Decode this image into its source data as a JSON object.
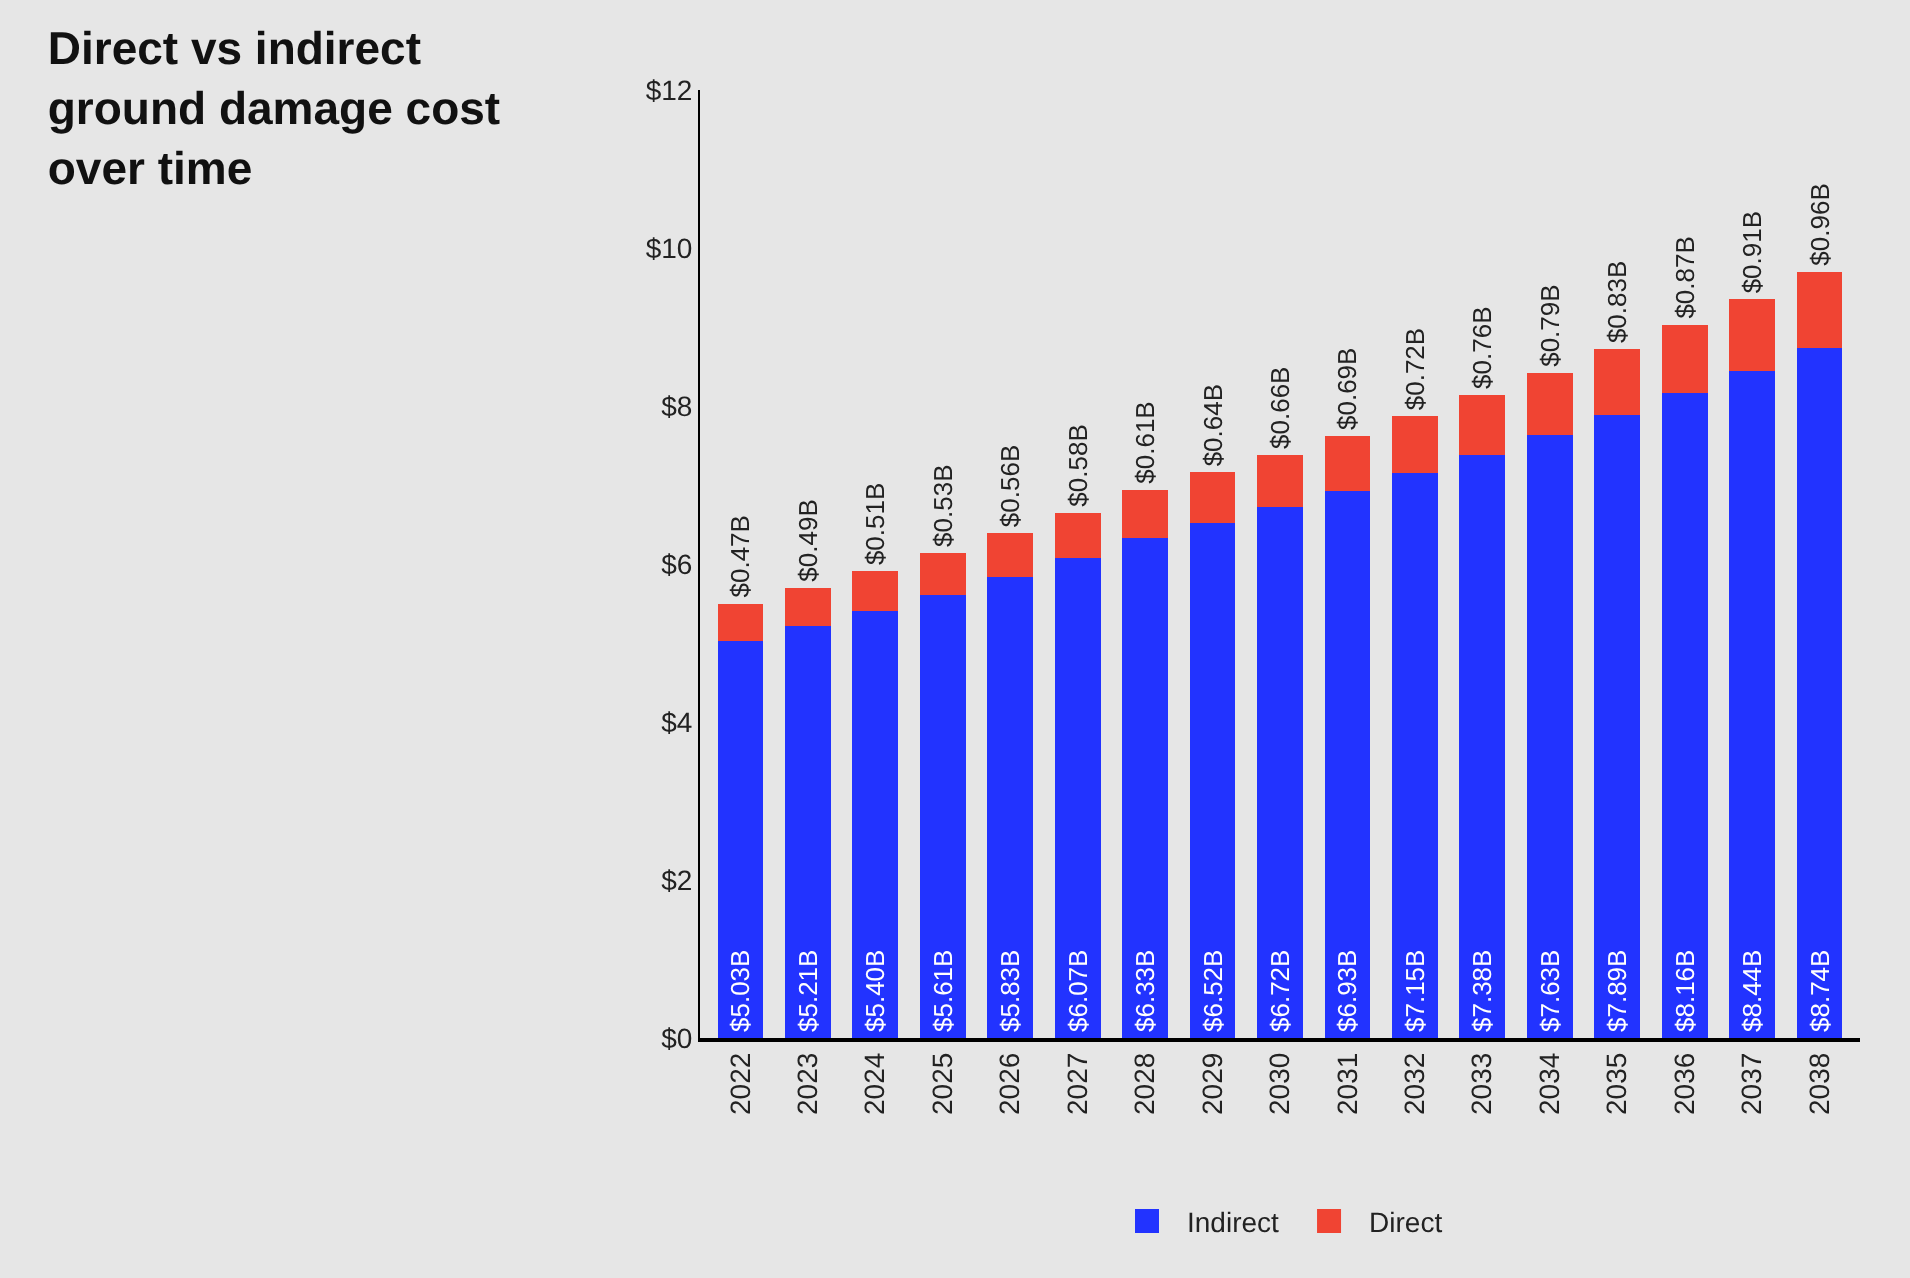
{
  "chart_data": {
    "type": "bar",
    "title": "Direct vs indirect ground damage cost over time",
    "categories": [
      "2022",
      "2023",
      "2024",
      "2025",
      "2026",
      "2027",
      "2028",
      "2029",
      "2030",
      "2031",
      "2032",
      "2033",
      "2034",
      "2035",
      "2036",
      "2037",
      "2038"
    ],
    "stacked": true,
    "series": [
      {
        "name": "Indirect",
        "color": "#2233ff",
        "values": [
          5.03,
          5.21,
          5.4,
          5.61,
          5.83,
          6.07,
          6.33,
          6.52,
          6.72,
          6.93,
          7.15,
          7.38,
          7.63,
          7.89,
          8.16,
          8.44,
          8.74
        ],
        "value_labels": [
          "$5.03B",
          "$5.21B",
          "$5.40B",
          "$5.61B",
          "$5.83B",
          "$6.07B",
          "$6.33B",
          "$6.52B",
          "$6.72B",
          "$6.93B",
          "$7.15B",
          "$7.38B",
          "$7.63B",
          "$7.89B",
          "$8.16B",
          "$8.44B",
          "$8.74B"
        ]
      },
      {
        "name": "Direct",
        "color": "#f04433",
        "values": [
          0.47,
          0.49,
          0.51,
          0.53,
          0.56,
          0.58,
          0.61,
          0.64,
          0.66,
          0.69,
          0.72,
          0.76,
          0.79,
          0.83,
          0.87,
          0.91,
          0.96
        ],
        "value_labels": [
          "$0.47B",
          "$0.49B",
          "$0.51B",
          "$0.53B",
          "$0.56B",
          "$0.58B",
          "$0.61B",
          "$0.64B",
          "$0.66B",
          "$0.69B",
          "$0.72B",
          "$0.76B",
          "$0.79B",
          "$0.83B",
          "$0.87B",
          "$0.91B",
          "$0.96B"
        ]
      }
    ],
    "ylim": [
      0,
      12
    ],
    "yticks": [
      {
        "value": 0,
        "label": "$0"
      },
      {
        "value": 2,
        "label": "$2"
      },
      {
        "value": 4,
        "label": "$4"
      },
      {
        "value": 6,
        "label": "$6"
      },
      {
        "value": 8,
        "label": "$8"
      },
      {
        "value": 10,
        "label": "$10"
      },
      {
        "value": 12,
        "label": "$12"
      }
    ],
    "grid": false,
    "legend": "bottom"
  }
}
